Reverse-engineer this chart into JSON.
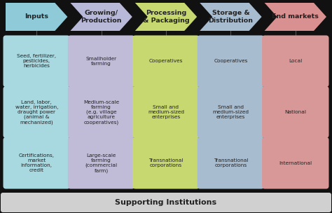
{
  "background_color": "#111111",
  "header_colors": [
    "#8ecad8",
    "#b8b8d8",
    "#c8d870",
    "#a8bcd0",
    "#d89090"
  ],
  "cell_colors": [
    "#a8d8e0",
    "#c0bcd8",
    "#c8d870",
    "#a8bcd0",
    "#d89898"
  ],
  "headers": [
    "Inputs",
    "Growing/\nProduction",
    "Processing\n& Packaging",
    "Storage &\nDistribution",
    "End markets"
  ],
  "rows": [
    [
      "Seed, fertilizer,\npesticides,\nherbicides",
      "Smallholder\nfarming",
      "Cooperatives",
      "Cooperatives",
      "Local"
    ],
    [
      "Land, labor,\nwater, irrigation,\ndraught power\n(animal &\nmechanized)",
      "Medium-scale\nfarming\n(e.g. village\nagriculture\ncooperatives)",
      "Small and\nmedium-sized\nenterprises",
      "Small and\nmedium-sized\nenterprises",
      "National"
    ],
    [
      "Certifications,\nmarket\ninformation,\ncredit",
      "Large-scale\nfarming\n(commercial\nfarm)",
      "Transnational\ncorporations",
      "Transnational\ncorporations",
      "International"
    ]
  ],
  "footer_text": "Supporting Institutions",
  "footer_color": "#d0d0d0",
  "num_cols": 5,
  "num_rows": 3
}
